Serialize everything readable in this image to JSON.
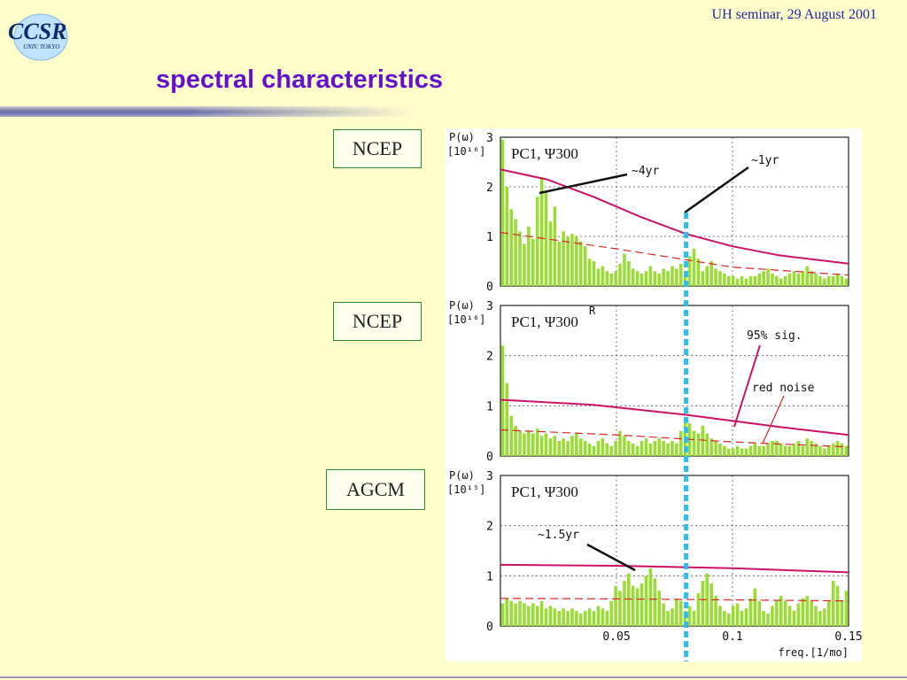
{
  "header": {
    "logo_text": "CCSR",
    "logo_subtext": "UNIV. TOKYO",
    "note": "UH seminar, 29 August 2001"
  },
  "slide": {
    "title": "spectral characteristics"
  },
  "labels": [
    "NCEP",
    "NCEP",
    "AGCM"
  ],
  "colors": {
    "bars": "#99dd33",
    "sig_curve": "#cc1166",
    "red_noise": "#dd2222",
    "marker_line": "#33bbee",
    "title": "#6611cc"
  },
  "chart_data": [
    {
      "type": "bar",
      "title": "PC1, Ψ300",
      "ylabel": "P(ω)",
      "ylabel_unit": "[10¹⁶]",
      "ylim": [
        0,
        3
      ],
      "yticks": [
        "0",
        "1",
        "2",
        "3"
      ],
      "xlim": [
        0,
        0.15
      ],
      "grid": true,
      "annotations": [
        "~4yr",
        "~1yr"
      ],
      "sig_curve": [
        [
          0.0,
          2.35
        ],
        [
          0.02,
          2.15
        ],
        [
          0.04,
          1.8
        ],
        [
          0.06,
          1.4
        ],
        [
          0.08,
          1.05
        ],
        [
          0.1,
          0.8
        ],
        [
          0.12,
          0.62
        ],
        [
          0.15,
          0.45
        ]
      ],
      "red_noise": [
        [
          0.0,
          1.08
        ],
        [
          0.05,
          0.75
        ],
        [
          0.1,
          0.38
        ],
        [
          0.15,
          0.22
        ]
      ],
      "values": [
        2.95,
        2.0,
        1.55,
        1.35,
        1.1,
        0.85,
        1.2,
        0.95,
        1.8,
        2.2,
        1.9,
        1.3,
        1.6,
        0.9,
        1.1,
        1.0,
        1.05,
        1.0,
        0.9,
        0.8,
        0.55,
        0.5,
        0.35,
        0.4,
        0.3,
        0.25,
        0.3,
        0.45,
        0.65,
        0.5,
        0.35,
        0.3,
        0.25,
        0.3,
        0.4,
        0.3,
        0.25,
        0.35,
        0.3,
        0.4,
        0.35,
        0.45,
        0.3,
        0.6,
        0.75,
        0.55,
        0.3,
        0.4,
        0.5,
        0.35,
        0.3,
        0.25,
        0.2,
        0.2,
        0.15,
        0.2,
        0.15,
        0.2,
        0.2,
        0.25,
        0.3,
        0.35,
        0.25,
        0.2,
        0.15,
        0.2,
        0.25,
        0.3,
        0.25,
        0.3,
        0.4,
        0.3,
        0.25,
        0.2,
        0.15,
        0.2,
        0.2,
        0.25,
        0.2,
        0.15
      ]
    },
    {
      "type": "bar",
      "title": "PC1, Ψ300",
      "title_superscript": "R",
      "ylabel": "P(ω)",
      "ylabel_unit": "[10¹⁶]",
      "ylim": [
        0,
        3
      ],
      "yticks": [
        "0",
        "1",
        "2",
        "3"
      ],
      "xlim": [
        0,
        0.15
      ],
      "grid": true,
      "annotations": [
        "95% sig.",
        "red noise"
      ],
      "sig_curve": [
        [
          0.0,
          1.12
        ],
        [
          0.04,
          1.02
        ],
        [
          0.08,
          0.82
        ],
        [
          0.12,
          0.58
        ],
        [
          0.15,
          0.42
        ]
      ],
      "red_noise": [
        [
          0.0,
          0.52
        ],
        [
          0.05,
          0.42
        ],
        [
          0.1,
          0.28
        ],
        [
          0.15,
          0.18
        ]
      ],
      "values": [
        2.2,
        1.45,
        0.8,
        0.6,
        0.5,
        0.45,
        0.5,
        0.45,
        0.55,
        0.4,
        0.45,
        0.35,
        0.4,
        0.3,
        0.35,
        0.3,
        0.4,
        0.45,
        0.35,
        0.3,
        0.25,
        0.2,
        0.3,
        0.35,
        0.25,
        0.2,
        0.3,
        0.5,
        0.4,
        0.3,
        0.25,
        0.2,
        0.3,
        0.35,
        0.25,
        0.3,
        0.35,
        0.3,
        0.25,
        0.3,
        0.25,
        0.5,
        0.75,
        0.65,
        0.5,
        0.45,
        0.6,
        0.45,
        0.35,
        0.3,
        0.25,
        0.2,
        0.15,
        0.15,
        0.2,
        0.15,
        0.15,
        0.2,
        0.25,
        0.2,
        0.2,
        0.25,
        0.3,
        0.3,
        0.25,
        0.2,
        0.2,
        0.25,
        0.3,
        0.2,
        0.35,
        0.3,
        0.25,
        0.2,
        0.15,
        0.2,
        0.25,
        0.3,
        0.25,
        0.2
      ]
    },
    {
      "type": "bar",
      "title": "PC1, Ψ300",
      "ylabel": "P(ω)",
      "ylabel_unit": "[10¹⁵]",
      "ylim": [
        0,
        3
      ],
      "yticks": [
        "0",
        "1",
        "2",
        "3"
      ],
      "xlim": [
        0,
        0.15
      ],
      "xticks": [
        "0.05",
        "0.1",
        "0.15"
      ],
      "xtick_values": [
        0.05,
        0.1,
        0.15
      ],
      "xlabel": "freq.[1/mo]",
      "grid": true,
      "annotations": [
        "~1.5yr"
      ],
      "sig_curve": [
        [
          0.0,
          1.22
        ],
        [
          0.05,
          1.2
        ],
        [
          0.1,
          1.15
        ],
        [
          0.15,
          1.07
        ]
      ],
      "red_noise": [
        [
          0.0,
          0.55
        ],
        [
          0.05,
          0.54
        ],
        [
          0.1,
          0.52
        ],
        [
          0.15,
          0.5
        ]
      ],
      "values": [
        0.45,
        0.55,
        0.5,
        0.45,
        0.5,
        0.45,
        0.4,
        0.45,
        0.4,
        0.5,
        0.35,
        0.4,
        0.35,
        0.3,
        0.35,
        0.3,
        0.35,
        0.3,
        0.25,
        0.3,
        0.35,
        0.3,
        0.4,
        0.35,
        0.3,
        0.5,
        0.8,
        0.7,
        0.9,
        1.05,
        0.8,
        0.75,
        0.85,
        1.0,
        1.15,
        0.95,
        0.7,
        0.45,
        0.3,
        0.35,
        0.55,
        0.5,
        0.3,
        0.4,
        0.3,
        0.65,
        0.9,
        1.05,
        0.85,
        0.6,
        0.4,
        0.3,
        0.25,
        0.4,
        0.45,
        0.3,
        0.35,
        0.55,
        0.75,
        0.5,
        0.3,
        0.25,
        0.4,
        0.5,
        0.6,
        0.5,
        0.4,
        0.3,
        0.45,
        0.55,
        0.6,
        0.5,
        0.4,
        0.3,
        0.35,
        0.5,
        0.9,
        0.8,
        0.5,
        0.7
      ]
    }
  ]
}
